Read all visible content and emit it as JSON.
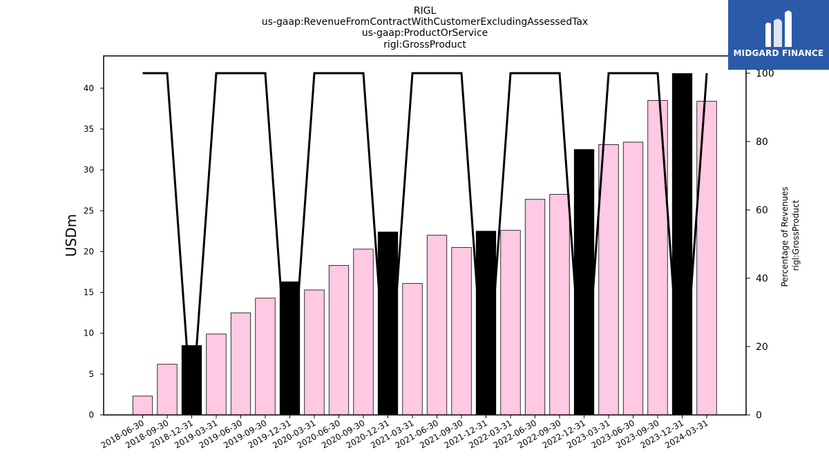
{
  "title": {
    "lines": [
      "RIGL",
      "us-gaap:RevenueFromContractWithCustomerExcludingAssessedTax",
      "us-gaap:ProductOrService",
      "rigl:GrossProduct"
    ]
  },
  "brand": {
    "name": "MIDGARD FINANCE",
    "logo_icon": "midgard-logo-icon",
    "background": "#2b5aa8"
  },
  "chart_data": {
    "type": "bar",
    "categories": [
      "2018-06-30",
      "2018-09-30",
      "2018-12-31",
      "2019-03-31",
      "2019-06-30",
      "2019-09-30",
      "2019-12-31",
      "2020-03-31",
      "2020-06-30",
      "2020-09-30",
      "2020-12-31",
      "2021-03-31",
      "2021-06-30",
      "2021-09-30",
      "2021-12-31",
      "2022-03-31",
      "2022-06-30",
      "2022-09-30",
      "2022-12-31",
      "2023-03-31",
      "2023-06-30",
      "2023-09-30",
      "2023-12-31",
      "2024-03-31"
    ],
    "series": [
      {
        "axis": "left",
        "kind": "bar",
        "values": [
          2.3,
          6.2,
          8.5,
          9.9,
          12.5,
          14.3,
          16.3,
          15.3,
          18.3,
          20.3,
          22.4,
          16.1,
          22.0,
          20.5,
          22.5,
          22.6,
          26.4,
          27.0,
          32.5,
          33.1,
          33.4,
          38.5,
          41.8,
          38.4
        ],
        "quarter_end_highlight": [
          false,
          false,
          true,
          false,
          false,
          false,
          true,
          false,
          false,
          false,
          true,
          false,
          false,
          false,
          true,
          false,
          false,
          false,
          true,
          false,
          false,
          false,
          true,
          false
        ]
      },
      {
        "axis": "right",
        "kind": "line",
        "values": [
          100,
          100,
          0,
          100,
          100,
          100,
          0,
          100,
          100,
          100,
          0,
          100,
          100,
          100,
          0,
          100,
          100,
          100,
          0,
          100,
          100,
          100,
          0,
          100
        ]
      }
    ],
    "ylabel": "USDm",
    "y2label_lines": [
      "Percentage of Revenues",
      "rigl:GrossProduct"
    ],
    "ylim": [
      0,
      44
    ],
    "y2lim": [
      0,
      100
    ],
    "yticks": [
      0,
      5,
      10,
      15,
      20,
      25,
      30,
      35,
      40
    ],
    "y2ticks": [
      0,
      20,
      40,
      60,
      80,
      100
    ],
    "colors": {
      "bar_normal": "#ffc8e3",
      "bar_highlight": "#000000",
      "line": "#000000"
    },
    "grid": false,
    "legend": "none"
  }
}
